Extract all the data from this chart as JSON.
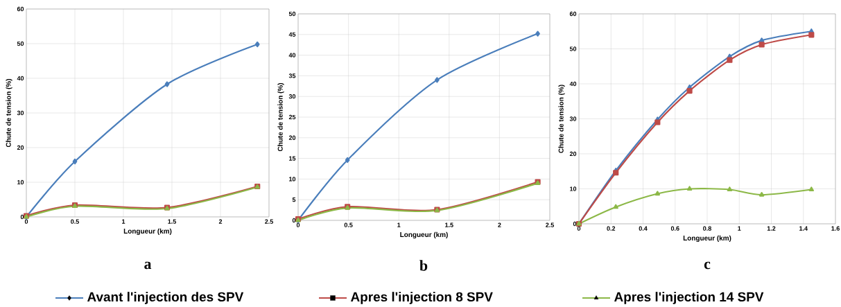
{
  "chart_data": [
    {
      "type": "line",
      "title": "a",
      "xlabel": "Longueur (km)",
      "ylabel": "Chute de tension (%)",
      "xlim": [
        0,
        2.5
      ],
      "xticks": [
        0,
        0.5,
        1,
        1.5,
        2,
        2.5
      ],
      "ylim": [
        0,
        60
      ],
      "yticks": [
        0,
        10,
        20,
        30,
        40,
        50,
        60
      ],
      "grid": true,
      "legend": "bottom",
      "line_style": "solid",
      "x": [
        0,
        0.5,
        1.45,
        2.38
      ],
      "series": [
        {
          "name": "Avant l'injection des SPV",
          "color": "#4a7ebb",
          "marker": "diamond",
          "values": [
            0,
            16,
            38.3,
            49.8
          ]
        },
        {
          "name": "Apres l'injection 8 SPV",
          "color": "#be4b48",
          "marker": "square",
          "values": [
            0.3,
            3.4,
            2.7,
            8.8
          ]
        },
        {
          "name": "Apres l'injection 14 SPV",
          "color": "#8cb847",
          "marker": "triangle",
          "values": [
            0,
            3.1,
            2.4,
            8.6
          ]
        }
      ]
    },
    {
      "type": "line",
      "title": "b",
      "xlabel": "Longueur (km)",
      "ylabel": "Chute de tension (%)",
      "xlim": [
        0,
        2.5
      ],
      "xticks": [
        0,
        0.5,
        1,
        1.5,
        2,
        2.5
      ],
      "ylim": [
        0,
        50
      ],
      "yticks": [
        0,
        5,
        10,
        15,
        20,
        25,
        30,
        35,
        40,
        45,
        50
      ],
      "grid": true,
      "line_style": "solid",
      "x": [
        0,
        0.49,
        1.38,
        2.38
      ],
      "series": [
        {
          "color": "#4a7ebb",
          "marker": "diamond",
          "values": [
            0,
            14.6,
            34,
            45.2
          ]
        },
        {
          "color": "#be4b48",
          "marker": "square",
          "values": [
            0.3,
            3.3,
            2.6,
            9.3
          ]
        },
        {
          "color": "#8cb847",
          "marker": "triangle",
          "values": [
            0,
            3,
            2.4,
            9
          ]
        }
      ]
    },
    {
      "type": "line",
      "title": "c",
      "xlabel": "Longueur (km)",
      "ylabel": "Chute de tension (%)",
      "xlim": [
        0,
        1.6
      ],
      "xticks": [
        0,
        0.2,
        0.4,
        0.6,
        0.8,
        1,
        1.2,
        1.4,
        1.6
      ],
      "ylim": [
        0,
        60
      ],
      "yticks": [
        0,
        10,
        20,
        30,
        40,
        50,
        60
      ],
      "grid": true,
      "line_style": "solid",
      "x": [
        0,
        0.23,
        0.49,
        0.69,
        0.94,
        1.14,
        1.45
      ],
      "series": [
        {
          "color": "#4a7ebb",
          "marker": "triangle",
          "values": [
            0,
            15.2,
            29.8,
            39,
            47.8,
            52.4,
            55
          ]
        },
        {
          "color": "#be4b48",
          "marker": "square",
          "values": [
            0,
            14.6,
            29,
            38,
            46.8,
            51.2,
            54
          ]
        },
        {
          "color": "#8cb847",
          "marker": "triangle",
          "values": [
            0,
            4.8,
            8.6,
            10,
            9.8,
            8.3,
            9.8
          ]
        }
      ]
    }
  ]
}
